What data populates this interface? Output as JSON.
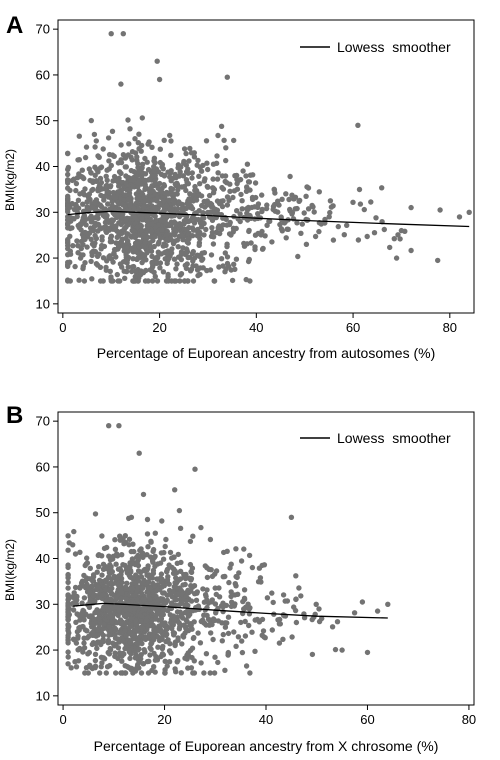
{
  "panels": [
    {
      "letter": "A",
      "legend_label": "Lowess  smoother",
      "xlabel": "Percentage of Euporean ancestry from autosomes (%)",
      "ylabel": "BMI(kg/m2)"
    },
    {
      "letter": "B",
      "legend_label": "Lowess  smoother",
      "xlabel": "Percentage of Euporean ancestry from X chrosome (%)",
      "ylabel": "BMI(kg/m2)"
    }
  ],
  "chart_data": [
    {
      "type": "scatter",
      "panel": "A",
      "xlabel": "Percentage of Euporean ancestry from autosomes (%)",
      "ylabel": "BMI(kg/m2)",
      "xlim": [
        -1,
        85
      ],
      "ylim": [
        8,
        72
      ],
      "xticks": [
        0,
        20,
        40,
        60,
        80
      ],
      "yticks": [
        10,
        20,
        30,
        40,
        50,
        60,
        70
      ],
      "grid": false,
      "legend": "top-right",
      "marker_color": "#737373",
      "line_color": "#000000",
      "series": [
        {
          "name": "Lowess  smoother",
          "kind": "line",
          "x": [
            1,
            5,
            10,
            15,
            20,
            30,
            40,
            50,
            60,
            70,
            84
          ],
          "y": [
            29.5,
            29.9,
            30.2,
            30.0,
            29.8,
            29.3,
            28.7,
            28.2,
            27.8,
            27.4,
            26.9
          ]
        }
      ],
      "notable_points": {
        "x": [
          10,
          12.5,
          34,
          19.5,
          20,
          12,
          61,
          78,
          84,
          82,
          77.5,
          69,
          70
        ],
        "y": [
          69,
          69,
          59.5,
          63,
          59,
          58,
          49,
          30.5,
          30,
          29,
          19.5,
          20,
          26
        ]
      },
      "cloud": {
        "n": 1500,
        "x_center": 14,
        "x_spread": 8,
        "y_center": 29,
        "y_spread": 7,
        "x_max": 72,
        "seed": 11
      }
    },
    {
      "type": "scatter",
      "panel": "B",
      "xlabel": "Percentage of Euporean ancestry from X chrosome (%)",
      "ylabel": "BMI(kg/m2)",
      "xlim": [
        -1,
        81
      ],
      "ylim": [
        8,
        72
      ],
      "xticks": [
        0,
        20,
        40,
        60,
        80
      ],
      "yticks": [
        10,
        20,
        30,
        40,
        50,
        60,
        70
      ],
      "grid": false,
      "legend": "top-right",
      "marker_color": "#737373",
      "line_color": "#000000",
      "series": [
        {
          "name": "Lowess  smoother",
          "kind": "line",
          "x": [
            2,
            5,
            8,
            12,
            20,
            30,
            40,
            50,
            64
          ],
          "y": [
            29.6,
            29.9,
            30.2,
            30.0,
            29.5,
            28.7,
            28.0,
            27.4,
            27.0
          ]
        }
      ],
      "notable_points": {
        "x": [
          9,
          11,
          15,
          26,
          22,
          45,
          60,
          64,
          62,
          59,
          55
        ],
        "y": [
          69,
          69,
          63,
          59.5,
          55,
          49,
          19.5,
          30,
          28.5,
          30.5,
          20
        ]
      },
      "cloud": {
        "n": 1400,
        "x_center": 12,
        "x_spread": 6.5,
        "y_center": 29,
        "y_spread": 7,
        "x_max": 58,
        "seed": 29
      }
    }
  ]
}
